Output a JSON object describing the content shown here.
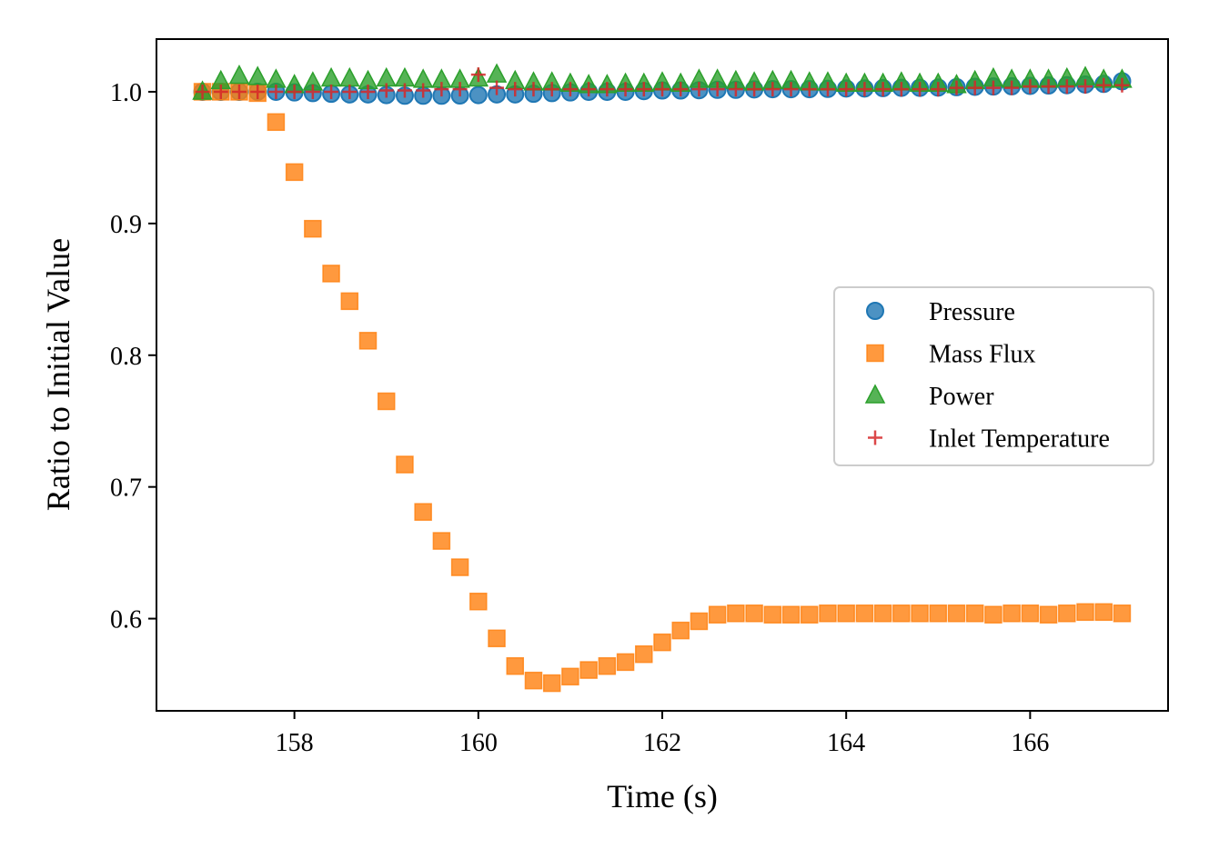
{
  "chart_data": {
    "type": "scatter",
    "title": "",
    "xlabel": "Time (s)",
    "ylabel": "Ratio to Initial Value",
    "xlim": [
      156.5,
      167.5
    ],
    "ylim": [
      0.53,
      1.04
    ],
    "xticks": [
      158,
      160,
      162,
      164,
      166
    ],
    "yticks": [
      0.6,
      0.7,
      0.8,
      0.9,
      1.0
    ],
    "xtick_labels": [
      "158",
      "160",
      "162",
      "164",
      "166"
    ],
    "ytick_labels": [
      "0.6",
      "0.7",
      "0.8",
      "0.9",
      "1.0"
    ],
    "grid": false,
    "legend_position": "center-right",
    "x": [
      157.0,
      157.2,
      157.4,
      157.6,
      157.8,
      158.0,
      158.2,
      158.4,
      158.6,
      158.8,
      159.0,
      159.2,
      159.4,
      159.6,
      159.8,
      160.0,
      160.2,
      160.4,
      160.6,
      160.8,
      161.0,
      161.2,
      161.4,
      161.6,
      161.8,
      162.0,
      162.2,
      162.4,
      162.6,
      162.8,
      163.0,
      163.2,
      163.4,
      163.6,
      163.8,
      164.0,
      164.2,
      164.4,
      164.6,
      164.8,
      165.0,
      165.2,
      165.4,
      165.6,
      165.8,
      166.0,
      166.2,
      166.4,
      166.6,
      166.8,
      167.0
    ],
    "series": [
      {
        "name": "Pressure",
        "marker": "circle",
        "color": "#1f77b4",
        "values": [
          1.0,
          1.0,
          1.0,
          1.0,
          1.0,
          0.9995,
          0.999,
          0.9985,
          0.998,
          0.998,
          0.9975,
          0.997,
          0.997,
          0.997,
          0.9972,
          0.9975,
          0.998,
          0.998,
          0.9985,
          0.999,
          0.9995,
          1.0,
          1.0,
          1.0,
          1.0005,
          1.001,
          1.001,
          1.0012,
          1.0015,
          1.0015,
          1.0018,
          1.002,
          1.002,
          1.002,
          1.0022,
          1.0025,
          1.0025,
          1.0028,
          1.003,
          1.003,
          1.0032,
          1.0035,
          1.0038,
          1.004,
          1.0042,
          1.0045,
          1.0048,
          1.005,
          1.0055,
          1.006,
          1.008
        ]
      },
      {
        "name": "Mass Flux",
        "marker": "square",
        "color": "#ff7f0e",
        "values": [
          1.0,
          1.0,
          1.0,
          0.999,
          0.977,
          0.939,
          0.896,
          0.862,
          0.841,
          0.811,
          0.765,
          0.717,
          0.681,
          0.659,
          0.639,
          0.613,
          0.585,
          0.564,
          0.553,
          0.551,
          0.556,
          0.561,
          0.564,
          0.567,
          0.573,
          0.582,
          0.591,
          0.598,
          0.603,
          0.604,
          0.604,
          0.603,
          0.603,
          0.603,
          0.604,
          0.604,
          0.604,
          0.604,
          0.604,
          0.604,
          0.604,
          0.604,
          0.604,
          0.603,
          0.604,
          0.604,
          0.603,
          0.604,
          0.605,
          0.605,
          0.604
        ]
      },
      {
        "name": "Power",
        "marker": "triangle",
        "color": "#2ca02c",
        "values": [
          1.0,
          1.008,
          1.012,
          1.011,
          1.009,
          1.005,
          1.007,
          1.01,
          1.01,
          1.008,
          1.01,
          1.01,
          1.009,
          1.009,
          1.009,
          1.01,
          1.013,
          1.008,
          1.007,
          1.007,
          1.006,
          1.005,
          1.005,
          1.006,
          1.006,
          1.007,
          1.006,
          1.009,
          1.009,
          1.008,
          1.007,
          1.008,
          1.008,
          1.007,
          1.007,
          1.006,
          1.006,
          1.006,
          1.007,
          1.006,
          1.006,
          1.005,
          1.008,
          1.01,
          1.009,
          1.009,
          1.009,
          1.01,
          1.011,
          1.009,
          1.009
        ]
      },
      {
        "name": "Inlet Temperature",
        "marker": "plus",
        "color": "#d62728",
        "values": [
          1.0,
          1.0,
          1.0,
          1.0,
          1.0,
          1.0,
          1.0,
          1.0,
          1.0,
          1.0,
          1.001,
          1.001,
          1.001,
          1.002,
          1.002,
          1.013,
          1.003,
          1.002,
          1.002,
          1.002,
          1.002,
          1.002,
          1.002,
          1.002,
          1.002,
          1.002,
          1.002,
          1.002,
          1.002,
          1.002,
          1.002,
          1.002,
          1.002,
          1.002,
          1.002,
          1.002,
          1.002,
          1.002,
          1.002,
          1.002,
          1.002,
          1.003,
          1.003,
          1.003,
          1.003,
          1.004,
          1.004,
          1.004,
          1.004,
          1.005,
          1.005
        ]
      }
    ]
  }
}
